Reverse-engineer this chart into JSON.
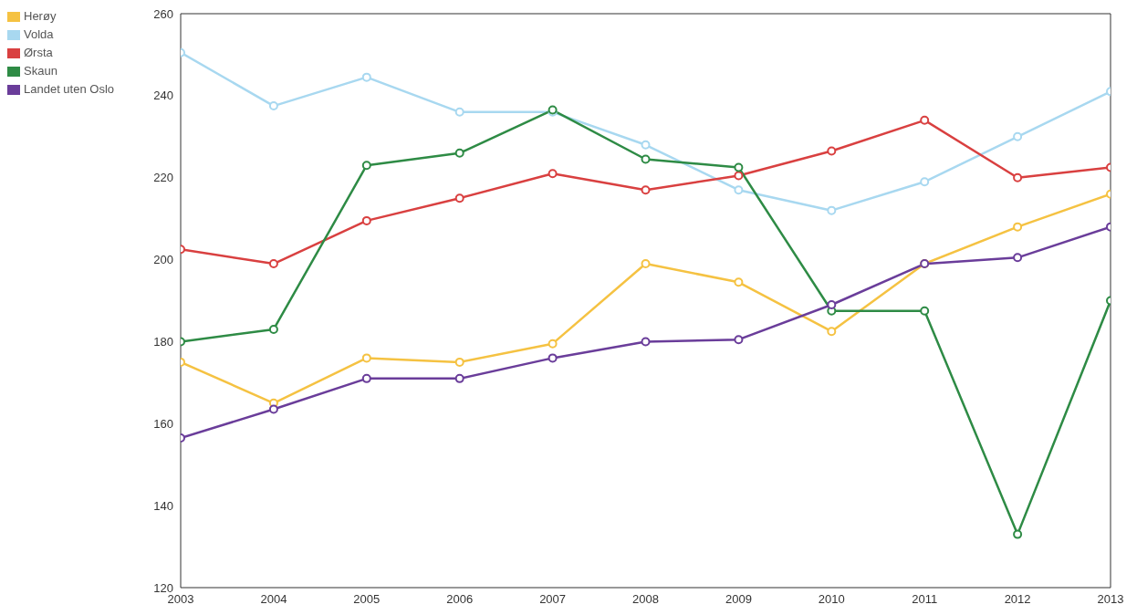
{
  "chart_data": {
    "type": "line",
    "x": [
      2003,
      2004,
      2005,
      2006,
      2007,
      2008,
      2009,
      2010,
      2011,
      2012,
      2013
    ],
    "series": [
      {
        "name": "Herøy",
        "color": "#f5c242",
        "values": [
          175,
          165,
          176,
          175,
          179.5,
          199,
          194.5,
          182.5,
          199,
          208,
          216
        ]
      },
      {
        "name": "Volda",
        "color": "#a8d8f0",
        "values": [
          250.5,
          237.5,
          244.5,
          236,
          236,
          228,
          217,
          212,
          219,
          230,
          241
        ]
      },
      {
        "name": "Ørsta",
        "color": "#d94040",
        "values": [
          202.5,
          199,
          209.5,
          215,
          221,
          217,
          220.5,
          226.5,
          234,
          220,
          222.5
        ]
      },
      {
        "name": "Skaun",
        "color": "#2e8b45",
        "values": [
          180,
          183,
          223,
          226,
          236.5,
          224.5,
          222.5,
          187.5,
          187.5,
          133,
          190
        ]
      },
      {
        "name": "Landet uten Oslo",
        "color": "#6a3d9a",
        "values": [
          156.5,
          163.5,
          171,
          171,
          176,
          180,
          180.5,
          189,
          199,
          200.5,
          208
        ]
      }
    ],
    "xlim": [
      2003,
      2013
    ],
    "xticks": [
      2003,
      2004,
      2005,
      2006,
      2007,
      2008,
      2009,
      2010,
      2011,
      2012,
      2013
    ],
    "ylim": [
      120,
      260
    ],
    "yticks": [
      120,
      140,
      160,
      180,
      200,
      220,
      240,
      260
    ],
    "legend": "top left",
    "marker": "circle",
    "line_style": "solid"
  }
}
